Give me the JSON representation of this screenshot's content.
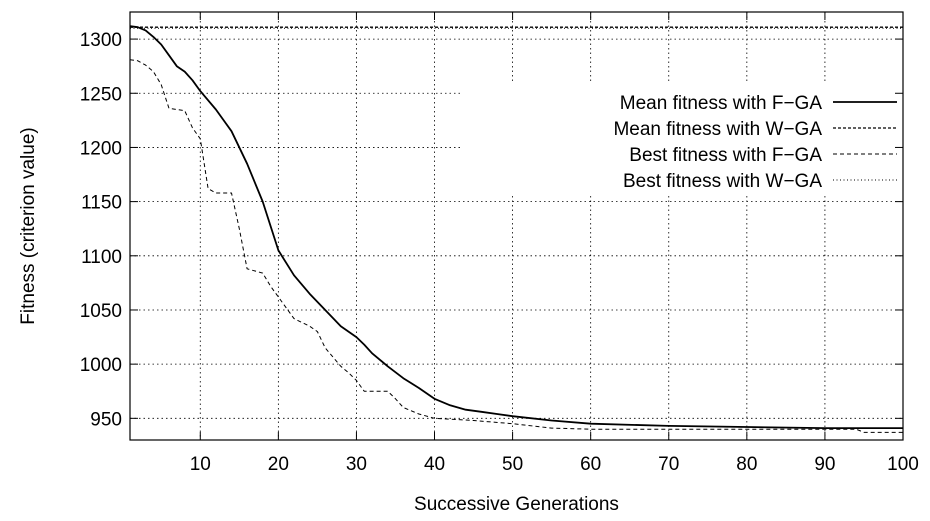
{
  "chart_data": {
    "type": "line",
    "xlabel": "Successive Generations",
    "ylabel": "Fitness (criterion value)",
    "xlim": [
      1,
      100
    ],
    "ylim": [
      930,
      1325
    ],
    "xticks": [
      10,
      20,
      30,
      40,
      50,
      60,
      70,
      80,
      90,
      100
    ],
    "yticks": [
      950,
      1000,
      1050,
      1100,
      1150,
      1200,
      1250,
      1300
    ],
    "grid": true,
    "legend_position": "top-right",
    "series": [
      {
        "name": "Mean fitness with F−GA",
        "style": "solid",
        "x": [
          1,
          2,
          3,
          4,
          5,
          6,
          7,
          8,
          9,
          10,
          12,
          14,
          16,
          18,
          20,
          22,
          24,
          26,
          28,
          30,
          31,
          32,
          34,
          36,
          38,
          40,
          42,
          44,
          46,
          48,
          50,
          55,
          60,
          70,
          80,
          90,
          100
        ],
        "y": [
          1312,
          1311,
          1308,
          1302,
          1295,
          1285,
          1275,
          1270,
          1262,
          1252,
          1235,
          1215,
          1185,
          1150,
          1105,
          1082,
          1065,
          1050,
          1035,
          1025,
          1018,
          1010,
          998,
          987,
          978,
          968,
          962,
          958,
          956,
          954,
          952,
          948,
          945,
          943,
          942,
          941,
          941
        ]
      },
      {
        "name": "Mean fitness with W−GA",
        "style": "dashed",
        "x": [
          1,
          100
        ],
        "y": [
          1311,
          1311
        ]
      },
      {
        "name": "Best fitness with F−GA",
        "style": "short-dashed",
        "x": [
          1,
          2,
          3,
          4,
          5,
          6,
          8,
          9,
          10,
          11,
          12,
          14,
          15,
          16,
          18,
          19,
          20,
          22,
          24,
          25,
          26,
          28,
          29,
          30,
          31,
          34,
          35,
          36,
          38,
          40,
          45,
          50,
          55,
          60,
          70,
          80,
          90,
          94,
          95,
          100
        ],
        "y": [
          1281,
          1280,
          1276,
          1270,
          1258,
          1236,
          1234,
          1218,
          1208,
          1162,
          1158,
          1158,
          1125,
          1088,
          1084,
          1072,
          1062,
          1042,
          1035,
          1030,
          1015,
          998,
          992,
          985,
          975,
          975,
          968,
          960,
          954,
          950,
          948,
          945,
          941,
          940,
          940,
          940,
          940,
          940,
          937,
          937
        ]
      },
      {
        "name": "Best fitness with W−GA",
        "style": "dotted",
        "x": [
          1,
          100
        ],
        "y": [
          1310,
          1310
        ]
      }
    ]
  }
}
